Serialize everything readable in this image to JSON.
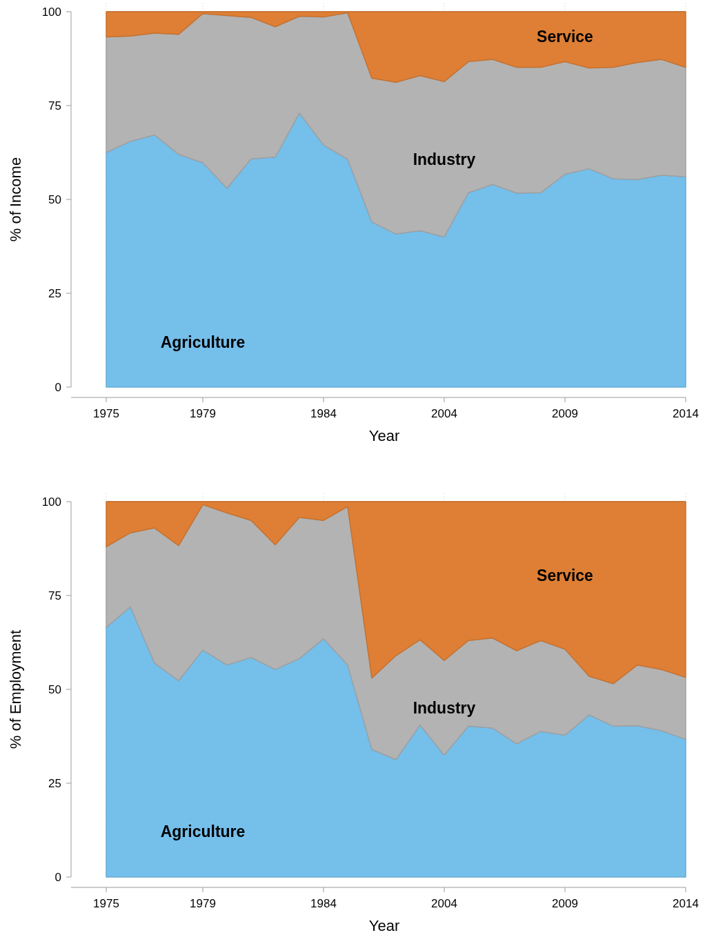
{
  "chart_data": [
    {
      "type": "area",
      "stacked": true,
      "grid": "x",
      "xlabel": "Year",
      "ylabel": "% of Income",
      "ylim": [
        0,
        100
      ],
      "yticks": [
        0,
        25,
        50,
        75,
        100
      ],
      "categories": [
        "1975",
        null,
        null,
        null,
        "1979",
        null,
        null,
        null,
        null,
        "1984",
        null,
        null,
        null,
        null,
        "2004",
        null,
        null,
        null,
        null,
        "2009",
        null,
        null,
        null,
        null,
        "2014"
      ],
      "series": [
        {
          "name": "Agriculture",
          "color": "#75bfeb",
          "values": [
            62.5,
            65.5,
            67.2,
            62,
            59.8,
            53,
            60.8,
            61.3,
            73,
            64.5,
            60.7,
            44,
            40.8,
            41.7,
            40,
            51.8,
            54,
            51.7,
            51.8,
            56.7,
            58.2,
            55.5,
            55.3,
            56.5,
            56
          ]
        },
        {
          "name": "Industry",
          "color": "#b3b3b3",
          "values": [
            30.8,
            28,
            27.1,
            32,
            39.7,
            46,
            37.7,
            34.7,
            25.8,
            34.1,
            39,
            38.3,
            40.4,
            41.3,
            41.4,
            34.9,
            33.3,
            33.5,
            33.4,
            30,
            26.8,
            29.7,
            31.2,
            30.8,
            29.2
          ]
        },
        {
          "name": "Service",
          "color": "#de7f35",
          "values": [
            6.7,
            6.5,
            5.7,
            6,
            0.5,
            1,
            1.5,
            4,
            1.2,
            1.4,
            0.3,
            17.7,
            18.8,
            17,
            18.6,
            13.3,
            12.7,
            14.8,
            14.8,
            13.3,
            15,
            14.8,
            13.5,
            12.7,
            14.8
          ]
        }
      ]
    },
    {
      "type": "area",
      "stacked": true,
      "grid": "x",
      "xlabel": "Year",
      "ylabel": "% of Employment",
      "ylim": [
        0,
        100
      ],
      "yticks": [
        0,
        25,
        50,
        75,
        100
      ],
      "categories": [
        "1975",
        null,
        null,
        null,
        "1979",
        null,
        null,
        null,
        null,
        "1984",
        null,
        null,
        null,
        null,
        "2004",
        null,
        null,
        null,
        null,
        "2009",
        null,
        null,
        null,
        null,
        "2014"
      ],
      "series": [
        {
          "name": "Agriculture",
          "color": "#75bfeb",
          "values": [
            66.5,
            72,
            57,
            52.3,
            60.5,
            56.5,
            58.5,
            55.3,
            58.2,
            63.5,
            56.5,
            34,
            31.3,
            40.5,
            32.5,
            40.2,
            39.7,
            35.5,
            38.8,
            37.8,
            43.2,
            40.2,
            40.3,
            39,
            36.7
          ]
        },
        {
          "name": "Industry",
          "color": "#b3b3b3",
          "values": [
            21.5,
            19.7,
            36,
            36,
            38.7,
            40.5,
            36.5,
            33.2,
            37.6,
            31.5,
            42.2,
            19,
            27.7,
            22.7,
            25.2,
            22.8,
            24,
            24.8,
            24.2,
            22.9,
            10.3,
            11.3,
            16.2,
            16.3,
            16.5
          ]
        },
        {
          "name": "Service",
          "color": "#de7f35",
          "values": [
            12,
            8.3,
            7,
            11.7,
            0.8,
            3,
            5,
            11.5,
            4.2,
            5,
            1.3,
            47,
            41,
            36.8,
            42.3,
            37,
            36.3,
            39.7,
            37,
            39.3,
            46.5,
            48.5,
            43.5,
            44.7,
            46.8
          ]
        }
      ]
    }
  ]
}
